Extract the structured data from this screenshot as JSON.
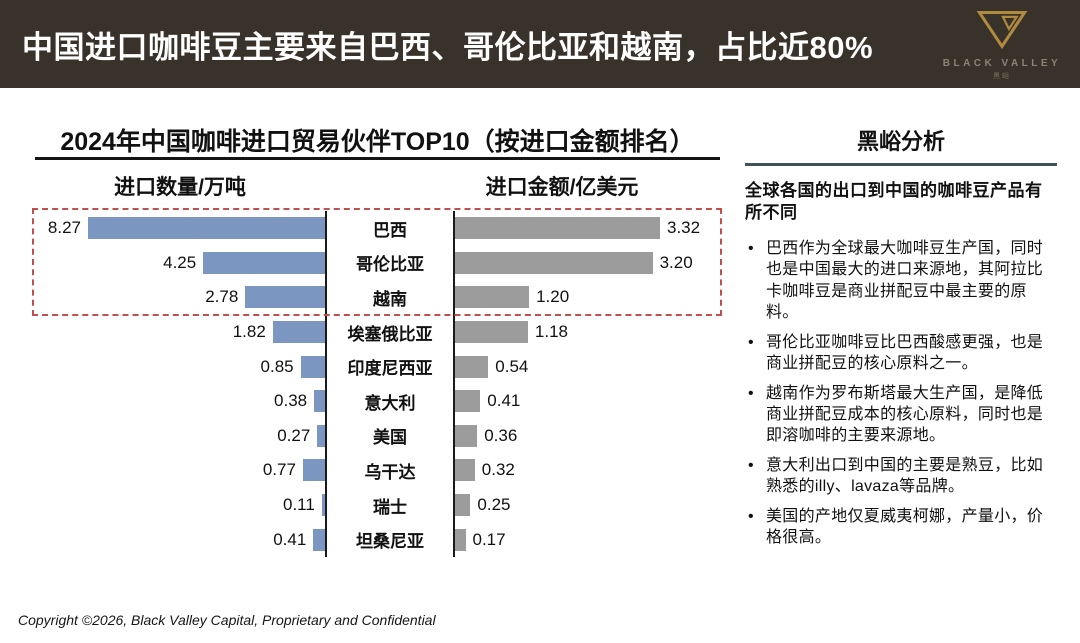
{
  "header": {
    "title": "中国进口咖啡豆主要来自巴西、哥伦比亚和越南，占比近80%",
    "logo": {
      "brand": "BLACK VALLEY",
      "sub": "黑峪"
    }
  },
  "chart_data": {
    "type": "bar",
    "title": "2024年中国咖啡进口贸易伙伴TOP10（按进口金额排名）",
    "left_axis_label": "进口数量/万吨",
    "right_axis_label": "进口金额/亿美元",
    "categories": [
      "巴西",
      "哥伦比亚",
      "越南",
      "埃塞俄比亚",
      "印度尼西亚",
      "意大利",
      "美国",
      "乌干达",
      "瑞士",
      "坦桑尼亚"
    ],
    "series": [
      {
        "name": "进口数量/万吨",
        "values": [
          8.27,
          4.25,
          2.78,
          1.82,
          0.85,
          0.38,
          0.27,
          0.77,
          0.11,
          0.41
        ]
      },
      {
        "name": "进口金额/亿美元",
        "values": [
          3.32,
          3.2,
          1.2,
          1.18,
          0.54,
          0.41,
          0.36,
          0.32,
          0.25,
          0.17
        ]
      }
    ],
    "left_axis_max": 8.27,
    "right_axis_max": 3.32,
    "highlight_rows": [
      0,
      1,
      2
    ],
    "colors": {
      "left_bar": "#7b96c0",
      "right_bar": "#9c9c9c",
      "highlight_border": "#c0504d"
    },
    "layout": "tornado, value labels at bar ends, category labels in center column, grid off"
  },
  "analysis": {
    "title": "黑峪分析",
    "intro": "全球各国的出口到中国的咖啡豆产品有所不同",
    "bullets": [
      "巴西作为全球最大咖啡豆生产国，同时也是中国最大的进口来源地，其阿拉比卡咖啡豆是商业拼配豆中最主要的原料。",
      "哥伦比亚咖啡豆比巴西酸感更强，也是商业拼配豆的核心原料之一。",
      "越南作为罗布斯塔最大生产国，是降低商业拼配豆成本的核心原料，同时也是即溶咖啡的主要来源地。",
      "意大利出口到中国的主要是熟豆，比如熟悉的illy、lavaza等品牌。",
      "美国的产地仅夏威夷柯娜，产量小，价格很高。"
    ]
  },
  "footer": {
    "copyright": "Copyright ©2026, Black Valley Capital, Proprietary and Confidential"
  }
}
